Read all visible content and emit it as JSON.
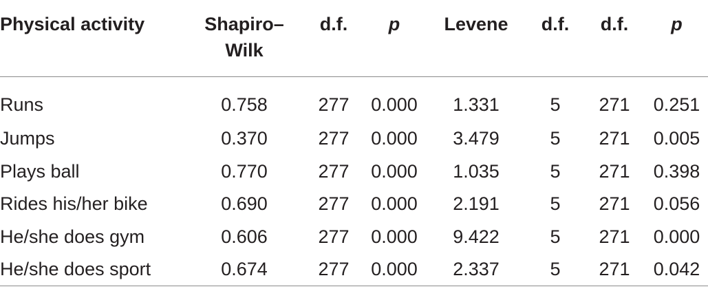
{
  "table": {
    "headers": [
      "Physical activity",
      "Shapiro–\nWilk",
      "d.f.",
      "p",
      "Levene",
      "d.f.",
      "d.f.",
      "p"
    ],
    "rows": [
      [
        "Runs",
        "0.758",
        "277",
        "0.000",
        "1.331",
        "5",
        "271",
        "0.251"
      ],
      [
        "Jumps",
        "0.370",
        "277",
        "0.000",
        "3.479",
        "5",
        "271",
        "0.005"
      ],
      [
        "Plays ball",
        "0.770",
        "277",
        "0.000",
        "1.035",
        "5",
        "271",
        "0.398"
      ],
      [
        "Rides his/her bike",
        "0.690",
        "277",
        "0.000",
        "2.191",
        "5",
        "271",
        "0.056"
      ],
      [
        "He/she does gym",
        "0.606",
        "277",
        "0.000",
        "9.422",
        "5",
        "271",
        "0.000"
      ],
      [
        "He/she does sport",
        "0.674",
        "277",
        "0.000",
        "2.337",
        "5",
        "271",
        "0.042"
      ]
    ]
  }
}
